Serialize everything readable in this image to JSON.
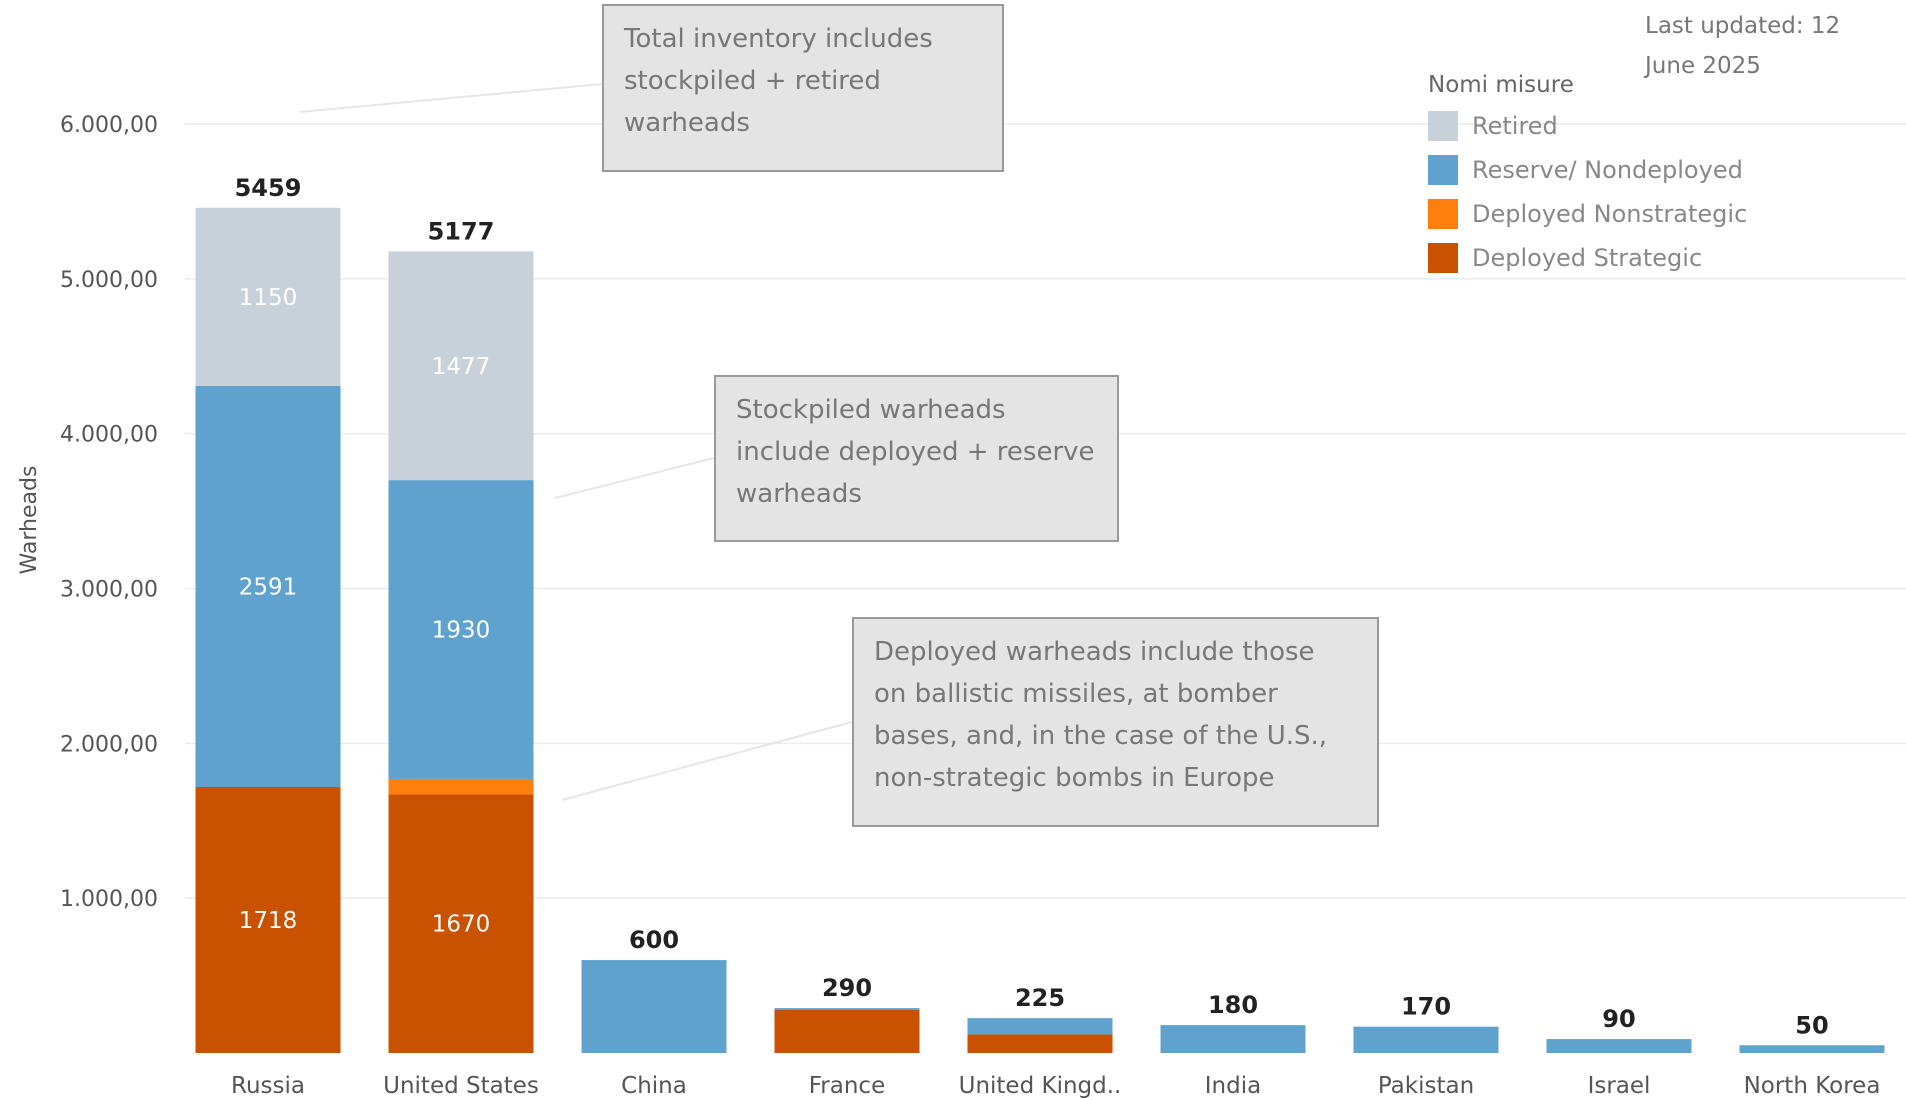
{
  "chart_data": {
    "type": "bar",
    "stacked": true,
    "ylabel": "Warheads",
    "ylim": [
      0,
      6000
    ],
    "yticks": [
      "1.000,00",
      "2.000,00",
      "3.000,00",
      "4.000,00",
      "5.000,00",
      "6.000,00"
    ],
    "ytick_values": [
      1000,
      2000,
      3000,
      4000,
      5000,
      6000
    ],
    "categories": [
      "Russia",
      "United States",
      "China",
      "France",
      "United Kingd..",
      "India",
      "Pakistan",
      "Israel",
      "North Korea"
    ],
    "totals": [
      5459,
      5177,
      600,
      290,
      225,
      180,
      170,
      90,
      50
    ],
    "series": [
      {
        "name": "Deployed Strategic",
        "color": "#c85200",
        "values": [
          1718,
          1670,
          0,
          280,
          120,
          0,
          0,
          0,
          0
        ],
        "labels": [
          "1718",
          "1670",
          "",
          "",
          "",
          "",
          "",
          "",
          ""
        ]
      },
      {
        "name": "Deployed Nonstrategic",
        "color": "#ff7f0e",
        "values": [
          0,
          100,
          0,
          0,
          0,
          0,
          0,
          0,
          0
        ],
        "labels": [
          "",
          "",
          "",
          "",
          "",
          "",
          "",
          "",
          ""
        ]
      },
      {
        "name": "Reserve/ Nondeployed",
        "color": "#5fa2ce",
        "values": [
          2591,
          1930,
          600,
          10,
          105,
          180,
          170,
          90,
          50
        ],
        "labels": [
          "2591",
          "1930",
          "",
          "",
          "",
          "",
          "",
          "",
          ""
        ]
      },
      {
        "name": "Retired",
        "color": "#c8d0d9",
        "values": [
          1150,
          1477,
          0,
          0,
          0,
          0,
          0,
          0,
          0
        ],
        "labels": [
          "1150",
          "1477",
          "",
          "",
          "",
          "",
          "",
          "",
          ""
        ]
      }
    ],
    "legend": {
      "title": "Nomi misure",
      "placement": "top-right",
      "items": [
        {
          "name": "Retired",
          "color": "#c8d0d9"
        },
        {
          "name": "Reserve/ Nondeployed",
          "color": "#5fa2ce"
        },
        {
          "name": "Deployed Nonstrategic",
          "color": "#ff7f0e"
        },
        {
          "name": "Deployed Strategic",
          "color": "#c85200"
        }
      ]
    },
    "annotations": [
      "Total inventory includes\nstockpiled + retired\nwarheads",
      "Stockpiled warheads\ninclude deployed + reserve\nwarheads",
      "Deployed warheads include those\non ballistic missiles, at bomber\nbases, and, in the case of the U.S.,\nnon-strategic bombs in Europe"
    ],
    "last_updated": "Last updated: 12\nJune 2025",
    "grid": true
  }
}
